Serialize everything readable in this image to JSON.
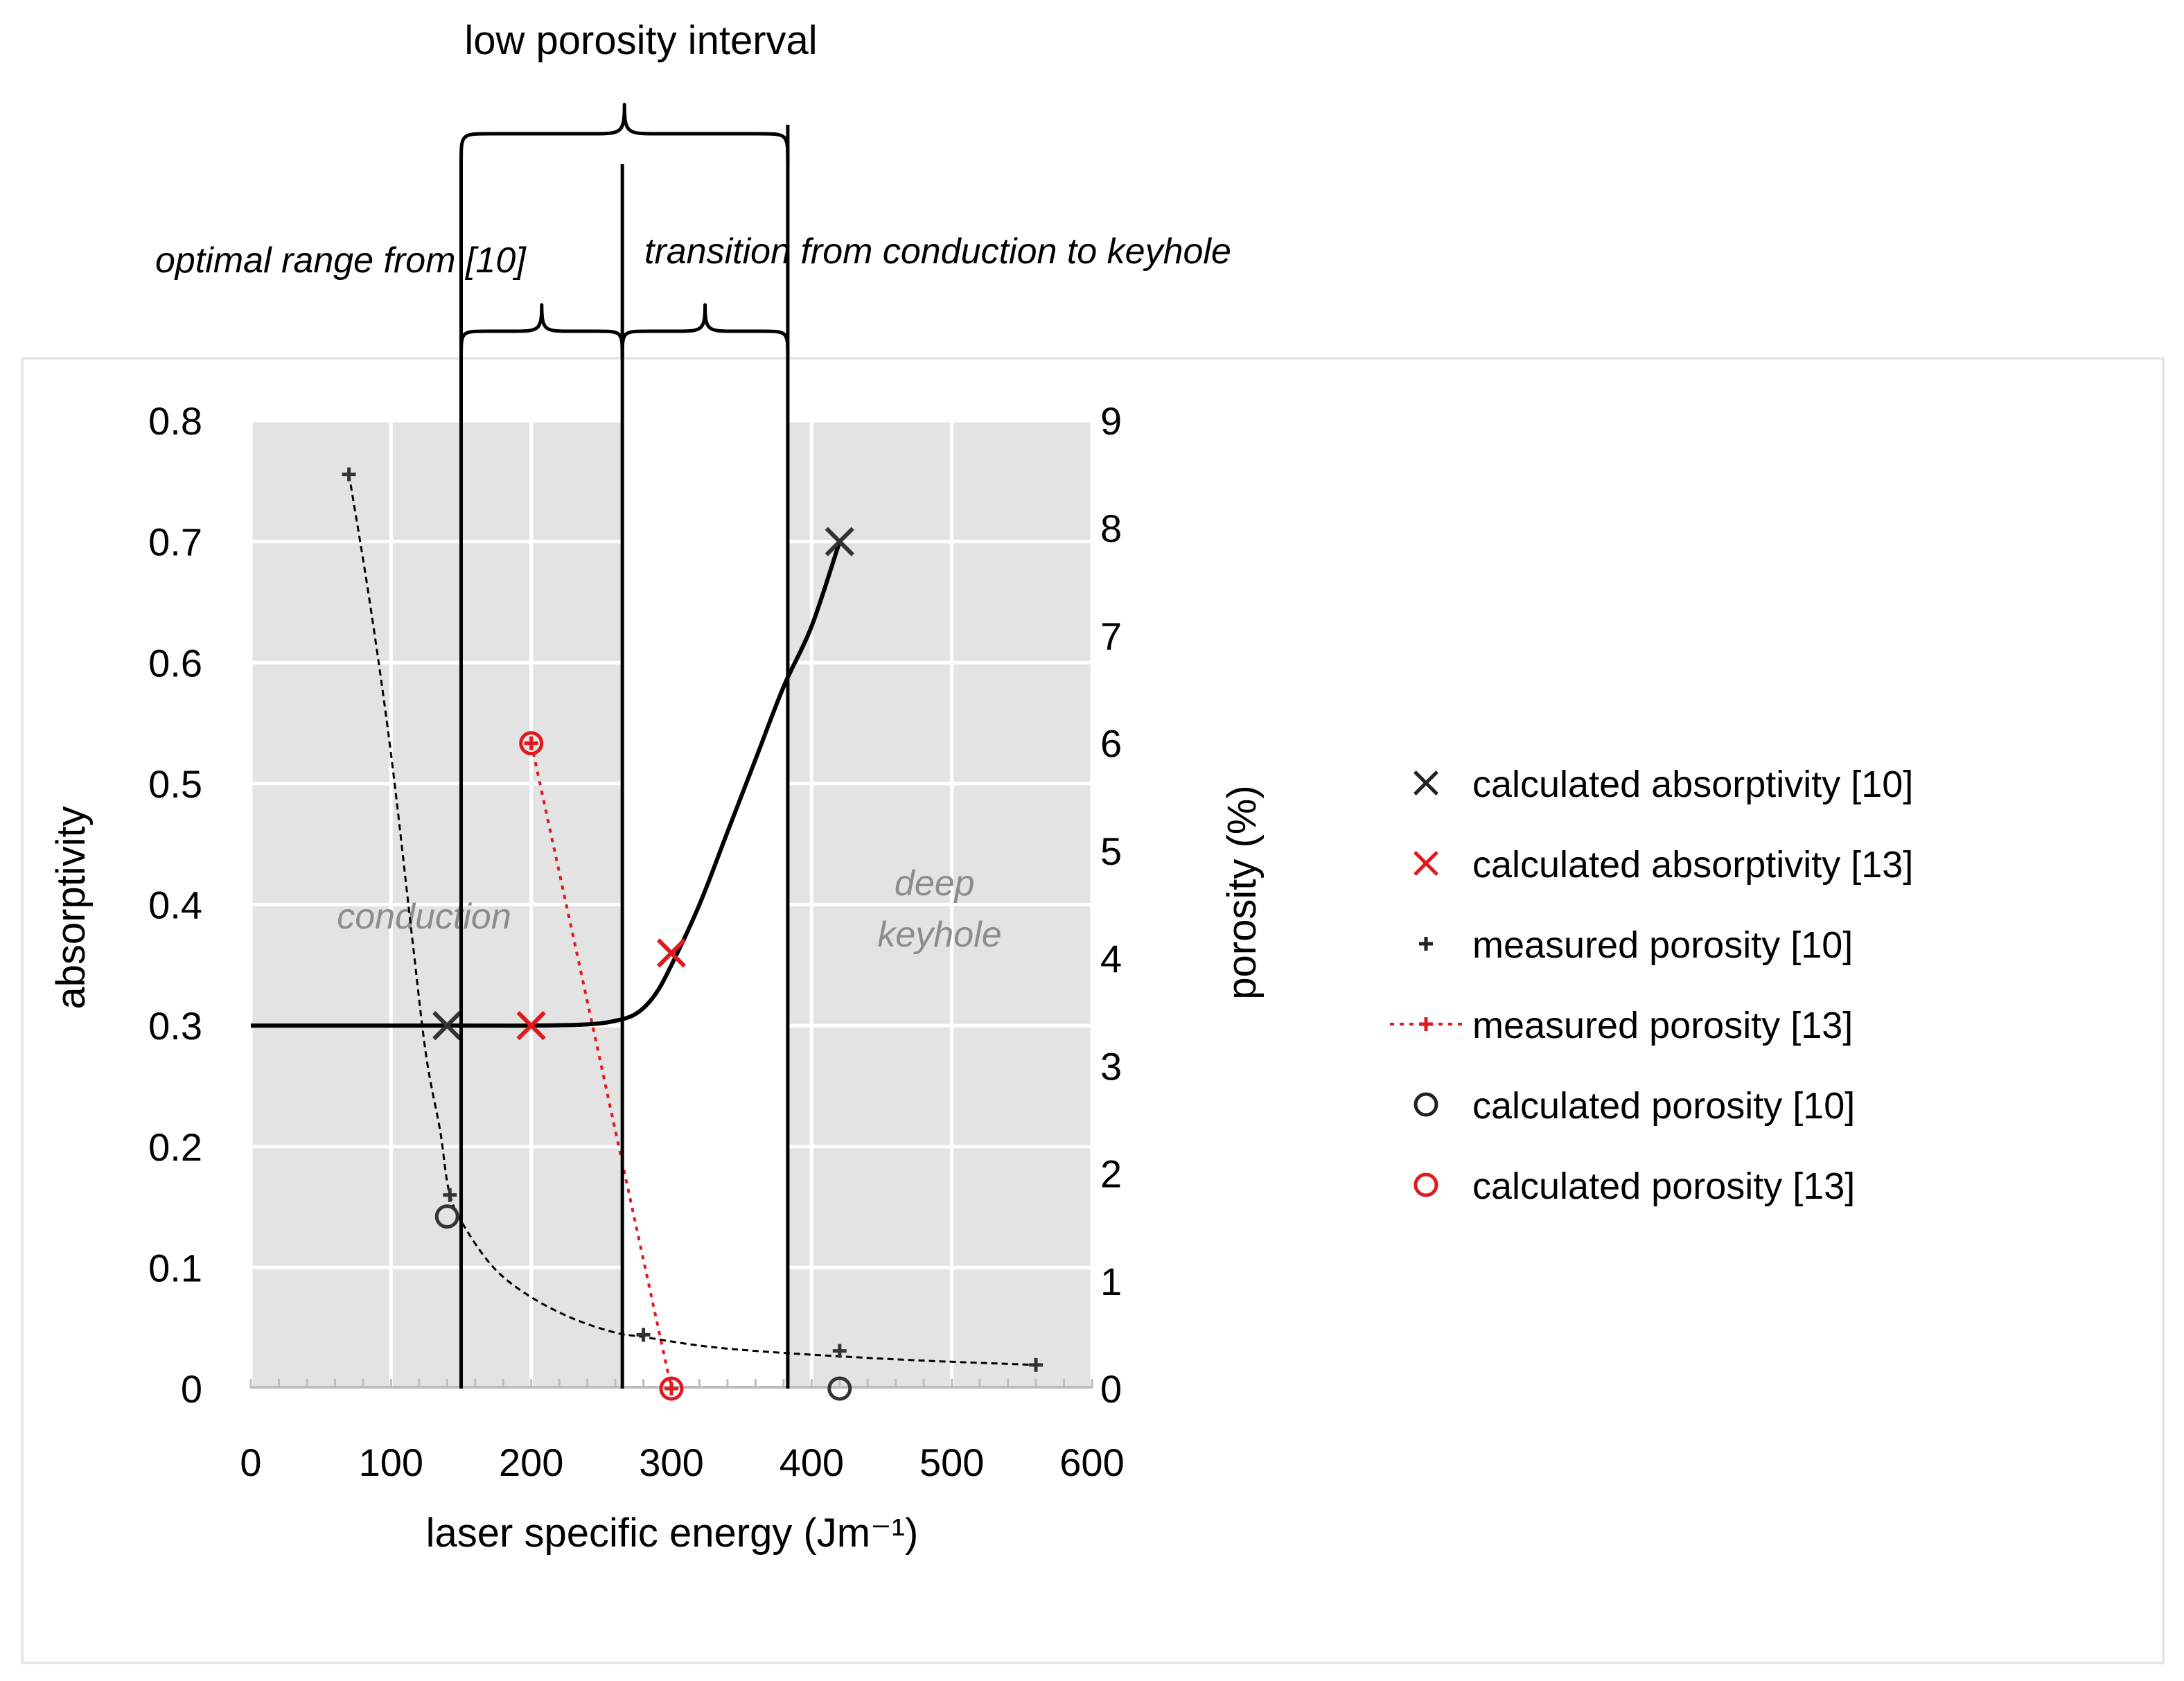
{
  "chart_data": {
    "type": "scatter",
    "header": "low porosity interval",
    "xlabel": "laser specific energy (Jm⁻¹)",
    "ylabel_left": "absorptivity",
    "ylabel_right": "porosity (%)",
    "xlim": [
      0,
      600
    ],
    "ylim_left": [
      0,
      0.8
    ],
    "ylim_right": [
      0,
      9
    ],
    "x_ticks": [
      "0",
      "100",
      "200",
      "300",
      "400",
      "500",
      "600"
    ],
    "y_left_ticks": [
      "0",
      "0.1",
      "0.2",
      "0.3",
      "0.4",
      "0.5",
      "0.6",
      "0.7",
      "0.8"
    ],
    "y_right_ticks": [
      "0",
      "1",
      "2",
      "3",
      "4",
      "5",
      "6",
      "7",
      "8",
      "9"
    ],
    "annotations": {
      "optimal": "optimal range from [10]",
      "transition": "transition from conduction to keyhole"
    },
    "regions": {
      "conduction": "conduction",
      "deep_keyhole": "deep keyhole"
    },
    "boundaries": [
      150,
      265,
      383
    ],
    "shaded_ranges": [
      [
        0,
        265
      ],
      [
        383,
        600
      ]
    ],
    "absorptivity_curve": [
      [
        0,
        0.3
      ],
      [
        140,
        0.3
      ],
      [
        200,
        0.3
      ],
      [
        240,
        0.301
      ],
      [
        260,
        0.304
      ],
      [
        275,
        0.31
      ],
      [
        288,
        0.325
      ],
      [
        300,
        0.35
      ],
      [
        320,
        0.4
      ],
      [
        340,
        0.46
      ],
      [
        360,
        0.52
      ],
      [
        380,
        0.58
      ],
      [
        400,
        0.63
      ],
      [
        420,
        0.7
      ]
    ],
    "porosity_fit_10": [
      [
        70,
        8.5
      ],
      [
        85,
        7.3
      ],
      [
        100,
        5.9
      ],
      [
        115,
        4.2
      ],
      [
        125,
        3.1
      ],
      [
        135,
        2.4
      ],
      [
        142,
        1.8
      ],
      [
        155,
        1.45
      ],
      [
        175,
        1.1
      ],
      [
        200,
        0.85
      ],
      [
        230,
        0.65
      ],
      [
        260,
        0.52
      ],
      [
        280,
        0.48
      ],
      [
        320,
        0.4
      ],
      [
        360,
        0.35
      ],
      [
        420,
        0.3
      ],
      [
        480,
        0.26
      ],
      [
        560,
        0.22
      ]
    ],
    "series": [
      {
        "name": "calculated absorptivity [10]",
        "axis": "left",
        "color": "#000000",
        "marker": "x",
        "x": [
          140,
          420
        ],
        "y": [
          0.3,
          0.7
        ]
      },
      {
        "name": "calculated absorptivity [13]",
        "axis": "left",
        "color": "#e0191d",
        "marker": "x",
        "x": [
          200,
          300
        ],
        "y": [
          0.3,
          0.36
        ]
      },
      {
        "name": "measured porosity [10]",
        "axis": "right",
        "color": "#000000",
        "marker": "plus",
        "x": [
          70,
          142,
          280,
          420,
          560
        ],
        "y": [
          8.5,
          1.8,
          0.5,
          0.35,
          0.22
        ]
      },
      {
        "name": "measured porosity [13]",
        "axis": "right",
        "color": "#e0191d",
        "marker": "plus",
        "line": "dotted",
        "x": [
          200,
          300
        ],
        "y": [
          6.0,
          0.0
        ]
      },
      {
        "name": "calculated porosity [10]",
        "axis": "right",
        "color": "#000000",
        "marker": "circle",
        "x": [
          140,
          420
        ],
        "y": [
          1.6,
          0.0
        ]
      },
      {
        "name": "calculated porosity [13]",
        "axis": "right",
        "color": "#e0191d",
        "marker": "circle",
        "x": [
          200,
          300
        ],
        "y": [
          6.0,
          0.0
        ]
      }
    ]
  }
}
